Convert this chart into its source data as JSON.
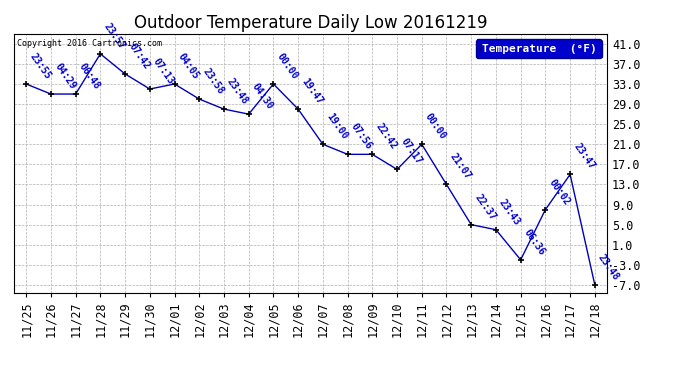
{
  "title": "Outdoor Temperature Daily Low 20161219",
  "background_color": "#ffffff",
  "line_color": "#0000bb",
  "marker_color": "#000000",
  "legend_label": "Temperature  (°F)",
  "legend_bg": "#0000cc",
  "legend_text_color": "#ffffff",
  "copyright_text": "Copyright 2016 Cartronics.com",
  "x_labels": [
    "11/25",
    "11/26",
    "11/27",
    "11/28",
    "11/29",
    "11/30",
    "12/01",
    "12/02",
    "12/03",
    "12/04",
    "12/05",
    "12/06",
    "12/07",
    "12/08",
    "12/09",
    "12/10",
    "12/11",
    "12/12",
    "12/13",
    "12/14",
    "12/15",
    "12/16",
    "12/17",
    "12/18"
  ],
  "y_values": [
    33.0,
    31.0,
    31.0,
    39.0,
    35.0,
    32.0,
    33.0,
    30.0,
    28.0,
    27.0,
    33.0,
    28.0,
    21.0,
    19.0,
    19.0,
    16.0,
    21.0,
    13.0,
    5.0,
    4.0,
    -2.0,
    8.0,
    15.0,
    -7.0
  ],
  "time_labels": [
    "23:55",
    "04:29",
    "06:48",
    "23:57",
    "07:42",
    "07:13",
    "04:05",
    "23:58",
    "23:48",
    "04:30",
    "00:00",
    "19:47",
    "19:00",
    "07:56",
    "22:42",
    "07:17",
    "00:00",
    "21:07",
    "22:37",
    "23:43",
    "06:36",
    "00:02",
    "23:47",
    "23:48"
  ],
  "yticks": [
    -7.0,
    -3.0,
    1.0,
    5.0,
    9.0,
    13.0,
    17.0,
    21.0,
    25.0,
    29.0,
    33.0,
    37.0,
    41.0
  ],
  "ylim": [
    -8.5,
    43.0
  ],
  "grid_color": "#b0b0b0",
  "annotation_color": "#0000cc",
  "annotation_fontsize": 7.0,
  "tick_fontsize": 8.5,
  "title_fontsize": 12
}
